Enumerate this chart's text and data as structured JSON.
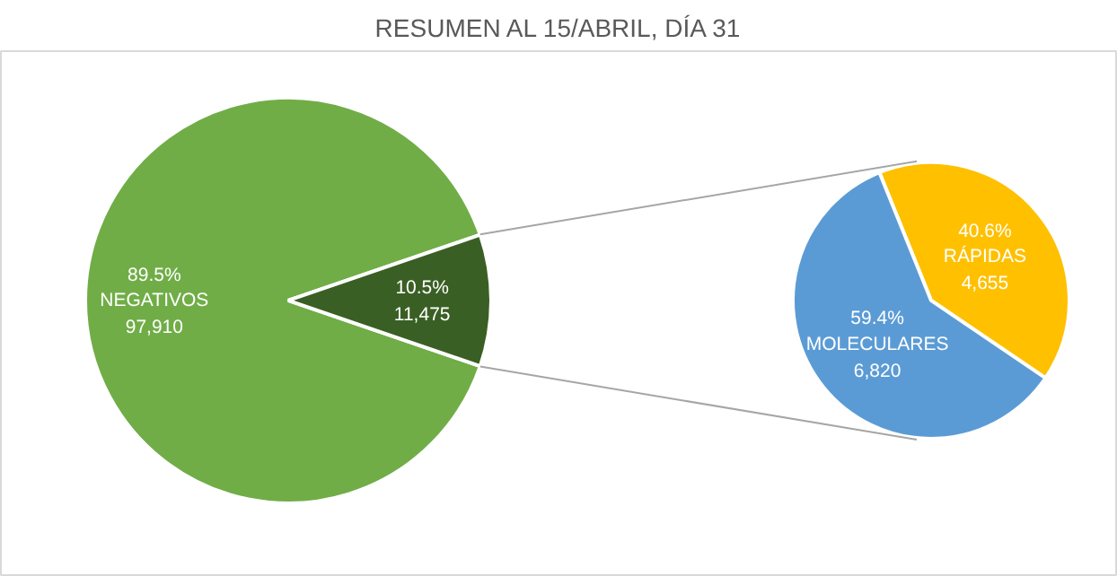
{
  "chart_data": [
    {
      "type": "pie",
      "title": "RESUMEN AL 15/ABRIL, DÍA 31",
      "categories": [
        "NEGATIVOS",
        null
      ],
      "values": [
        89.5,
        10.5
      ],
      "value_labels": [
        "89.5%\n97,910",
        "10.5%\n11,475"
      ],
      "colors": [
        "#70ad47",
        "#3a5f24"
      ]
    },
    {
      "type": "pie",
      "categories": [
        "RÁPIDAS",
        "MOLECULARES"
      ],
      "values": [
        40.6,
        59.4
      ],
      "value_labels": [
        "40.6%\n4,655",
        "59.4%\n6,820"
      ],
      "colors": [
        "#ffc000",
        "#5b9bd5"
      ]
    }
  ]
}
